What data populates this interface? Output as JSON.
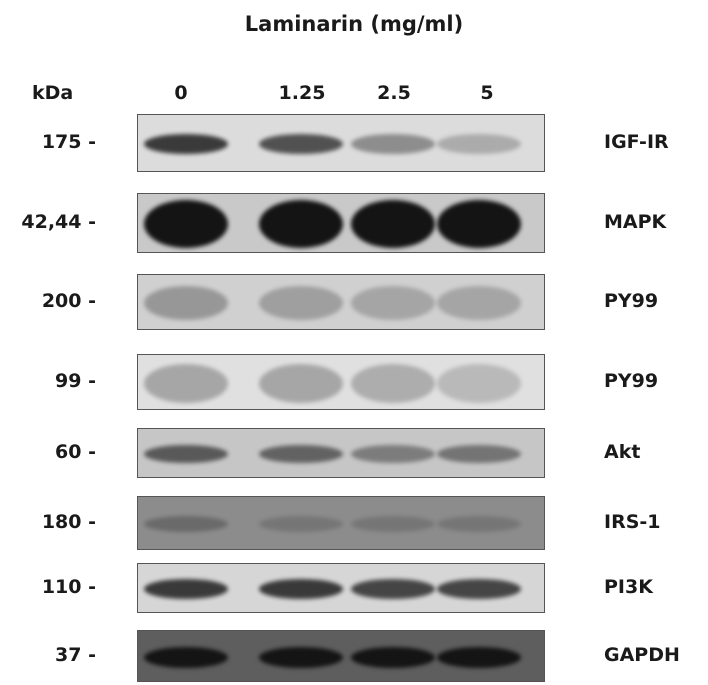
{
  "title": "Laminarin (mg/ml)",
  "kda_label": "kDa",
  "lanes": [
    "0",
    "1.25",
    "2.5",
    "5"
  ],
  "rows": [
    {
      "mw": "175 -",
      "protein": "IGF-IR",
      "bg": "#dcdcdc",
      "intensity": [
        0.85,
        0.75,
        0.45,
        0.25
      ],
      "thick": 0.35
    },
    {
      "mw": "42,44 -",
      "protein": "MAPK",
      "bg": "#c9c9c9",
      "intensity": [
        1.0,
        1.0,
        1.0,
        1.0
      ],
      "thick": 0.8
    },
    {
      "mw": "200 -",
      "protein": "PY99",
      "bg": "#d0d0d0",
      "intensity": [
        0.35,
        0.3,
        0.25,
        0.25
      ],
      "thick": 0.6
    },
    {
      "mw": "99 -",
      "protein": "PY99",
      "bg": "#e0e0e0",
      "intensity": [
        0.3,
        0.3,
        0.25,
        0.15
      ],
      "thick": 0.7
    },
    {
      "mw": "60 -",
      "protein": "Akt",
      "bg": "#c6c6c6",
      "intensity": [
        0.7,
        0.65,
        0.5,
        0.55
      ],
      "thick": 0.35
    },
    {
      "mw": "180 -",
      "protein": "IRS-1",
      "bg": "#8c8c8c",
      "intensity": [
        0.5,
        0.4,
        0.4,
        0.4
      ],
      "thick": 0.3
    },
    {
      "mw": "110 -",
      "protein": "PI3K",
      "bg": "#d6d6d6",
      "intensity": [
        0.85,
        0.85,
        0.8,
        0.8
      ],
      "thick": 0.4
    },
    {
      "mw": "37 -",
      "protein": "GAPDH",
      "bg": "#5e5e5e",
      "intensity": [
        1.0,
        1.0,
        1.0,
        1.0
      ],
      "thick": 0.4
    }
  ]
}
